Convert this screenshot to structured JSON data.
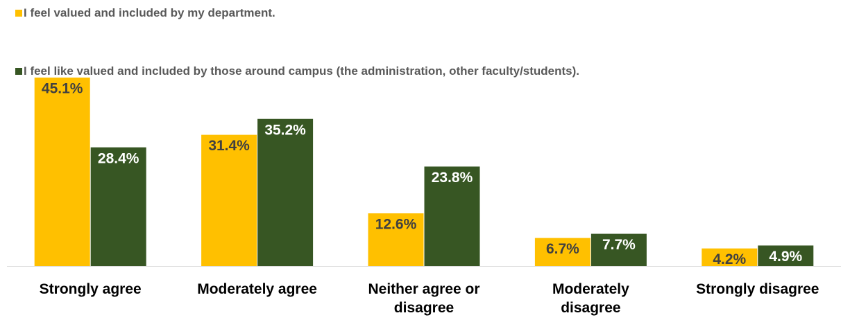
{
  "chart_data": {
    "type": "bar",
    "categories": [
      [
        "Strongly agree"
      ],
      [
        "Moderately agree"
      ],
      [
        "Neither agree or",
        "disagree"
      ],
      [
        "Moderately",
        "disagree"
      ],
      [
        "Strongly disagree"
      ]
    ],
    "series": [
      {
        "name": "I feel valued and included by my department.",
        "color": "#FFC000",
        "label_color": "#404040",
        "values": [
          45.1,
          31.4,
          12.6,
          6.7,
          4.2
        ],
        "labels": [
          "45.1%",
          "31.4%",
          "12.6%",
          "6.7%",
          "4.2%"
        ]
      },
      {
        "name": "I feel like valued and included by those around campus (the administration, other faculty/students).",
        "color": "#375623",
        "label_color": "#FFFFFF",
        "values": [
          28.4,
          35.2,
          23.8,
          7.7,
          4.9
        ],
        "labels": [
          "28.4%",
          "35.2%",
          "23.8%",
          "7.7%",
          "4.9%"
        ]
      }
    ],
    "ylim": [
      0,
      45.1
    ],
    "grid": false,
    "legend_position": "top-left",
    "title": "",
    "xlabel": "",
    "ylabel": ""
  }
}
